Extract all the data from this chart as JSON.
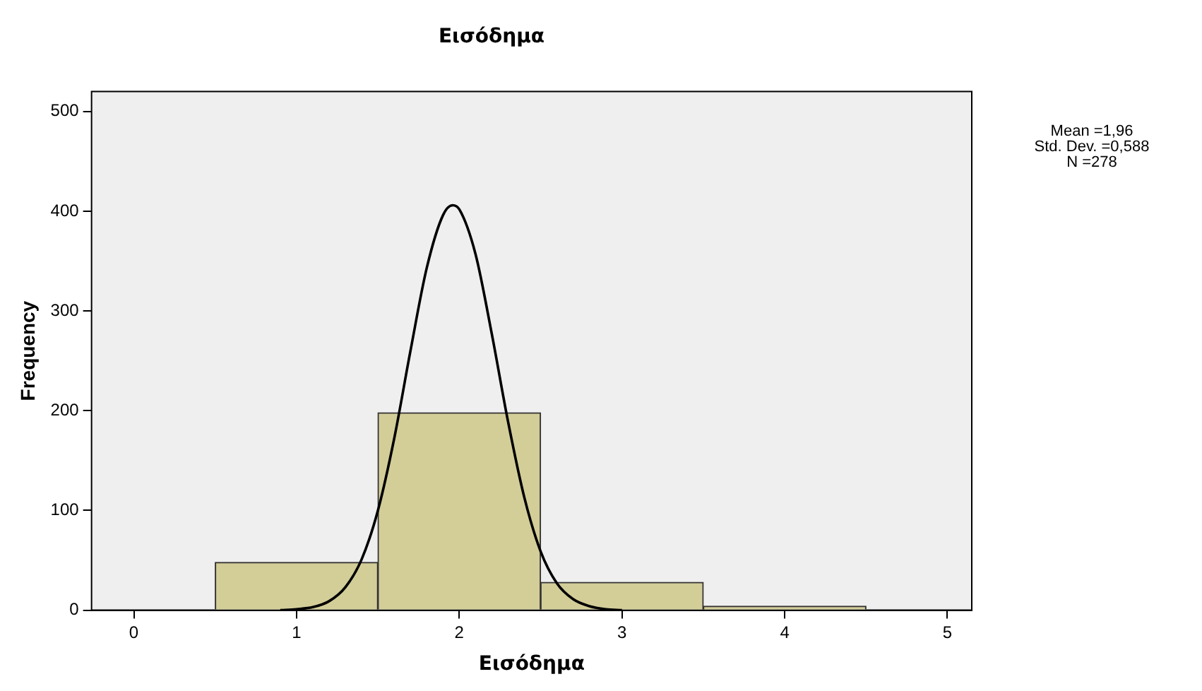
{
  "chart_data": {
    "type": "histogram",
    "title": "Εισόδημα",
    "xlabel": "Εισόδημα",
    "ylabel": "Frequency",
    "bins": [
      0.5,
      1.5,
      2.5,
      3.5,
      4.5
    ],
    "values": [
      48,
      198,
      28,
      4
    ],
    "color": "#d3cd98",
    "series": [
      {
        "type": "line",
        "color": "#000000",
        "x": [
          0.9,
          1.0,
          1.1,
          1.2,
          1.3,
          1.4,
          1.5,
          1.6,
          1.7,
          1.8,
          1.9,
          1.96,
          2.0,
          2.1,
          2.2,
          2.3,
          2.4,
          2.5,
          2.6,
          2.7,
          2.8,
          2.9,
          3.0
        ],
        "values": [
          0,
          1,
          3,
          9,
          23,
          51,
          100,
          172,
          260,
          343,
          396,
          406,
          402,
          357,
          277,
          189,
          113,
          59,
          27,
          11,
          4,
          1,
          0
        ]
      }
    ],
    "xlim": [
      -0.26,
      5.15
    ],
    "xticks": [
      0,
      1,
      2,
      3,
      4,
      5
    ],
    "ylim": [
      0,
      520
    ],
    "yticks": [
      0,
      100,
      200,
      300,
      400,
      500
    ],
    "legend": false,
    "marker": "none",
    "annotations": [
      "Mean =1,96",
      "Std. Dev. =0,588",
      "N =278"
    ]
  }
}
